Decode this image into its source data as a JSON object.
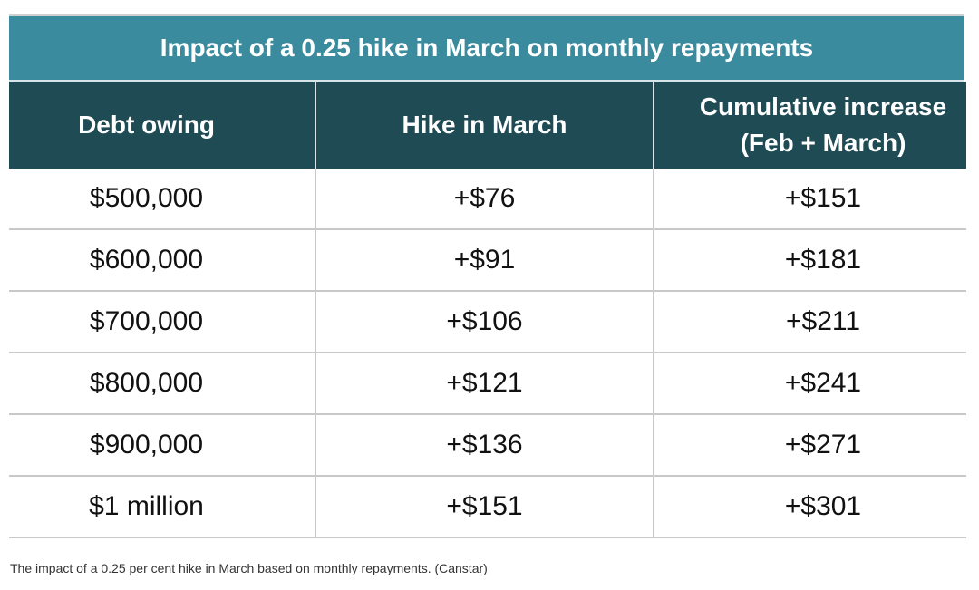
{
  "table": {
    "title": "Impact of a 0.25 hike in March on monthly repayments",
    "header": [
      "Debt owing",
      "Hike in March",
      "Cumulative increase (Feb + March)"
    ],
    "rows": [
      [
        "$500,000",
        "+$76",
        "+$151"
      ],
      [
        "$600,000",
        "+$91",
        "+$181"
      ],
      [
        "$700,000",
        "+$106",
        "+$211"
      ],
      [
        "$800,000",
        "+$121",
        "+$241"
      ],
      [
        "$900,000",
        "+$136",
        "+$271"
      ],
      [
        "$1 million",
        "+$151",
        "+$301"
      ]
    ]
  },
  "caption": "The impact of a 0.25 per cent hike in March based on monthly repayments. (Canstar)"
}
